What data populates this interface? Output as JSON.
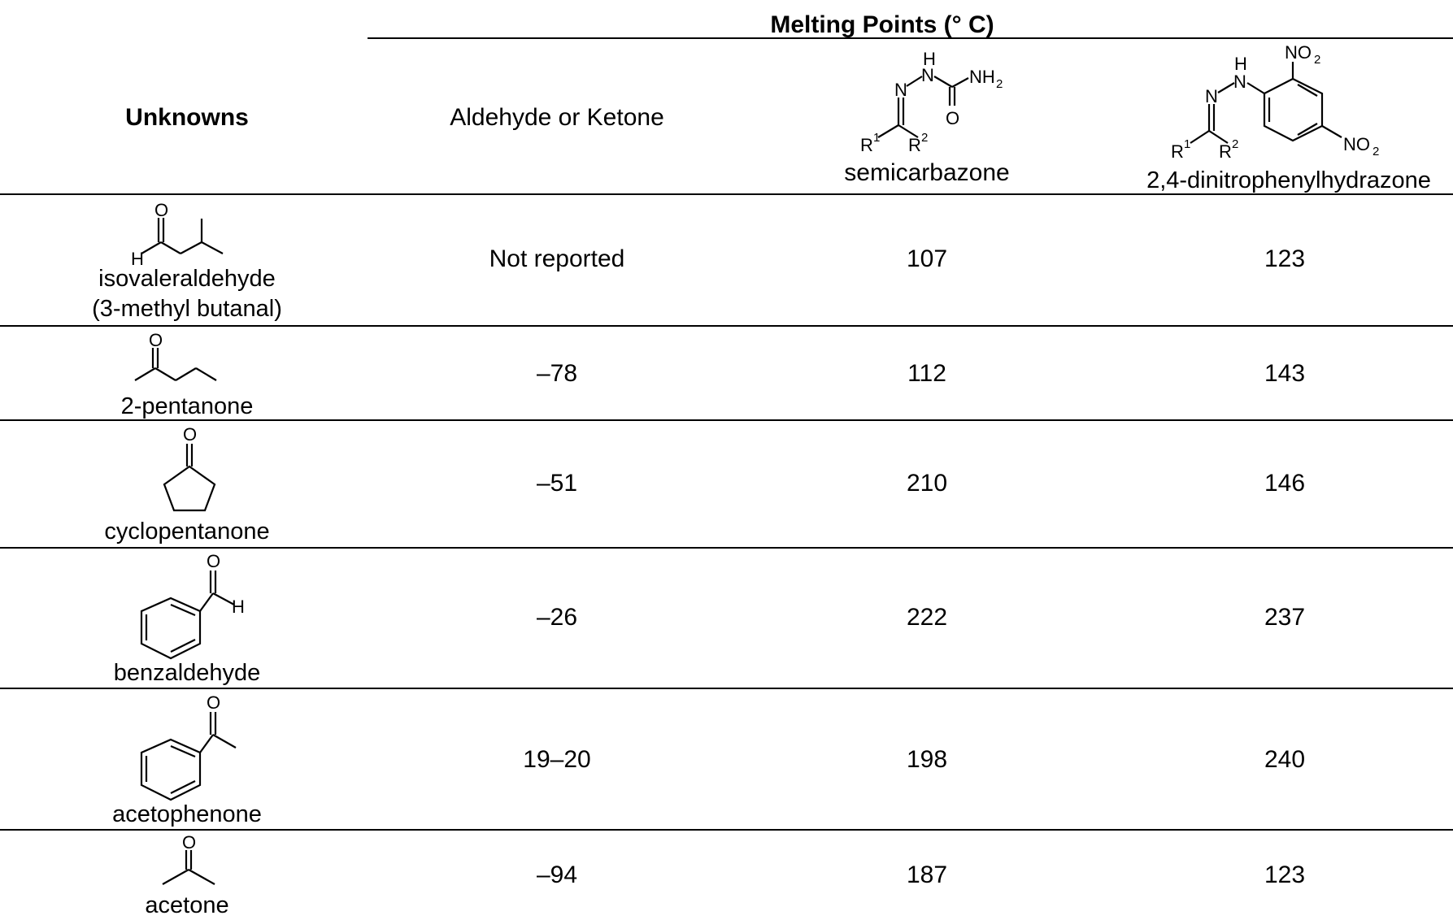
{
  "header": {
    "group_title": "Melting Points (° C)",
    "col_unknowns": "Unknowns",
    "col_aldehyde": "Aldehyde or Ketone",
    "col_semicarbazone": "semicarbazone",
    "col_dnph": "2,4-dinitrophenylhydrazone"
  },
  "structure_labels": {
    "H": "H",
    "N": "N",
    "O": "O",
    "NH2": "NH",
    "sub2": "2",
    "NO": "NO",
    "R": "R",
    "sup1": "1",
    "sup2": "2"
  },
  "rows": [
    {
      "name_line1": "isovaleraldehyde",
      "name_line2": "(3-methyl butanal)",
      "aldehyde_mp": "Not reported",
      "semicarbazone_mp": "107",
      "dnph_mp": "123",
      "structure_icon": "isovaleraldehyde-structure"
    },
    {
      "name_line1": "2-pentanone",
      "aldehyde_mp": "–78",
      "semicarbazone_mp": "112",
      "dnph_mp": "143",
      "structure_icon": "2-pentanone-structure"
    },
    {
      "name_line1": "cyclopentanone",
      "aldehyde_mp": "–51",
      "semicarbazone_mp": "210",
      "dnph_mp": "146",
      "structure_icon": "cyclopentanone-structure"
    },
    {
      "name_line1": "benzaldehyde",
      "aldehyde_mp": "–26",
      "semicarbazone_mp": "222",
      "dnph_mp": "237",
      "structure_icon": "benzaldehyde-structure"
    },
    {
      "name_line1": "acetophenone",
      "aldehyde_mp": "19–20",
      "semicarbazone_mp": "198",
      "dnph_mp": "240",
      "structure_icon": "acetophenone-structure"
    },
    {
      "name_line1": "acetone",
      "aldehyde_mp": "–94",
      "semicarbazone_mp": "187",
      "dnph_mp": "123",
      "structure_icon": "acetone-structure"
    }
  ]
}
